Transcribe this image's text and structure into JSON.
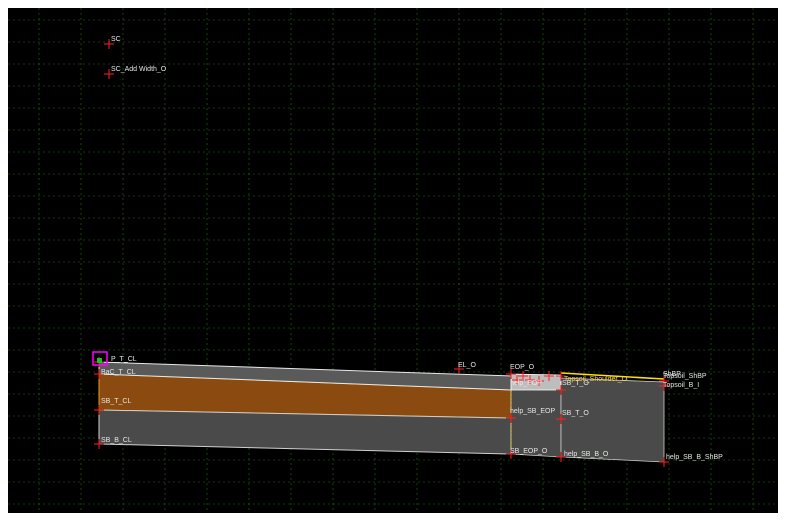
{
  "canvas": {
    "background": "#000000",
    "grid_color": "#2f9a2f",
    "grid": "dashed"
  },
  "colors": {
    "base_layer": "#8a4a10",
    "subbase_layer": "#4a4a4a",
    "point_marker": "#ff2020",
    "edge_line": "#e8e8e8",
    "topsoil_line": "#ffe000",
    "selection_box": "#ff00ff"
  },
  "points": {
    "sc": "SC",
    "sc_add_width": "SC_Add Width_O",
    "pav_t_cl": "P_T_CL",
    "bac_t_cl": "BaC_T_CL",
    "sb_t_cl": "SB_T_CL",
    "sb_b_cl": "SB_B_CL",
    "el_o": "EL_O",
    "eop_o": "EOP_O",
    "help_eop": "help_EOP",
    "sb_t_o": "SB_T_O",
    "topsoil_shoulder": "Topsoil_Shoulder_O",
    "shbp": "ShBP",
    "topsoil_shbp": "Topsoil_ShBP",
    "topsoil_b_i": "Topsoil_B_I",
    "help_sb_eop": "help_SB_EOP",
    "sb_eop_o": "SB_EOP_O",
    "help_sb_b_o": "help_SB_B_O",
    "help_sb_b_shbp": "help_SB_B_ShBP"
  }
}
